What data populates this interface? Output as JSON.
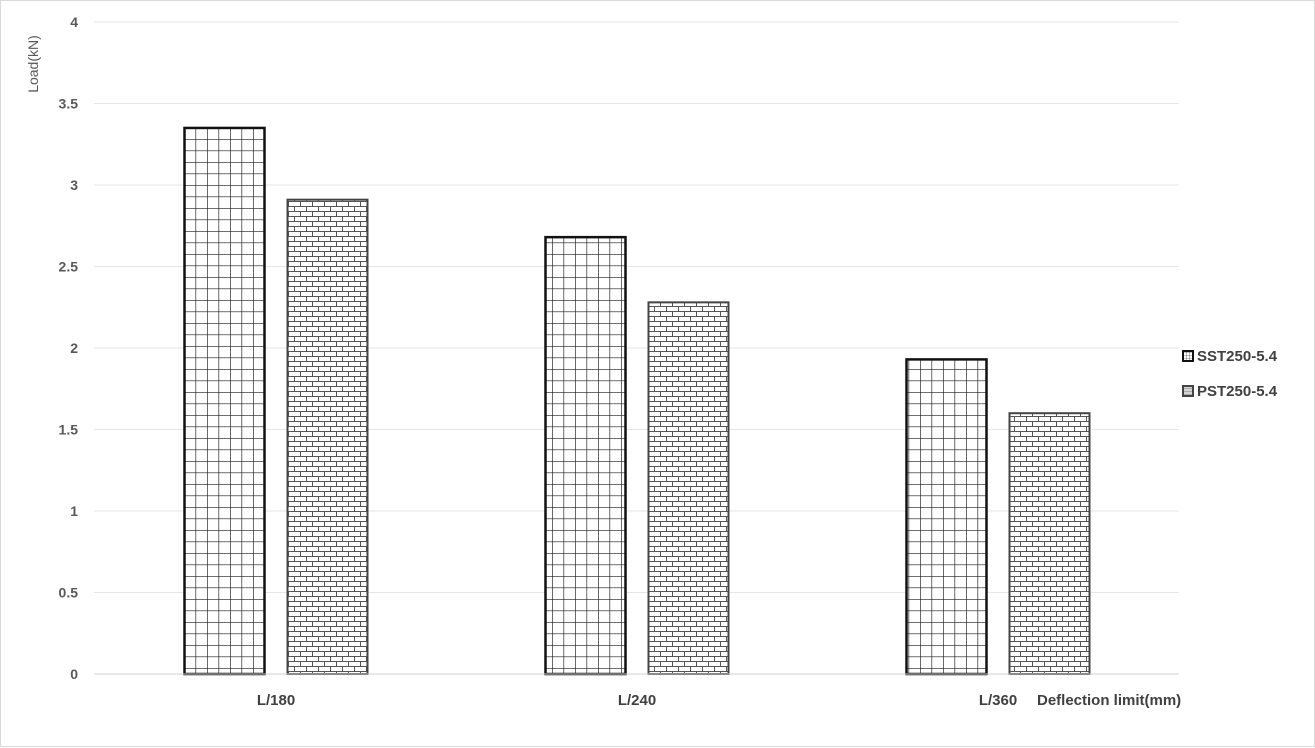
{
  "chart_data": {
    "type": "bar",
    "title": "",
    "xlabel": "Deflection limit(mm)",
    "ylabel": "Load(kN)",
    "ylim": [
      0,
      4
    ],
    "yticks": [
      "0",
      "0.5",
      "1",
      "1.5",
      "2",
      "2.5",
      "3",
      "3.5",
      "4"
    ],
    "categories": [
      "L/180",
      "L/240",
      "L/360"
    ],
    "series": [
      {
        "name": "SST250-5.4",
        "values": [
          3.35,
          2.68,
          1.93
        ],
        "pattern": "grid"
      },
      {
        "name": "PST250-5.4",
        "values": [
          2.91,
          2.28,
          1.6
        ],
        "pattern": "brick"
      }
    ],
    "grid": true,
    "legend": "right"
  }
}
